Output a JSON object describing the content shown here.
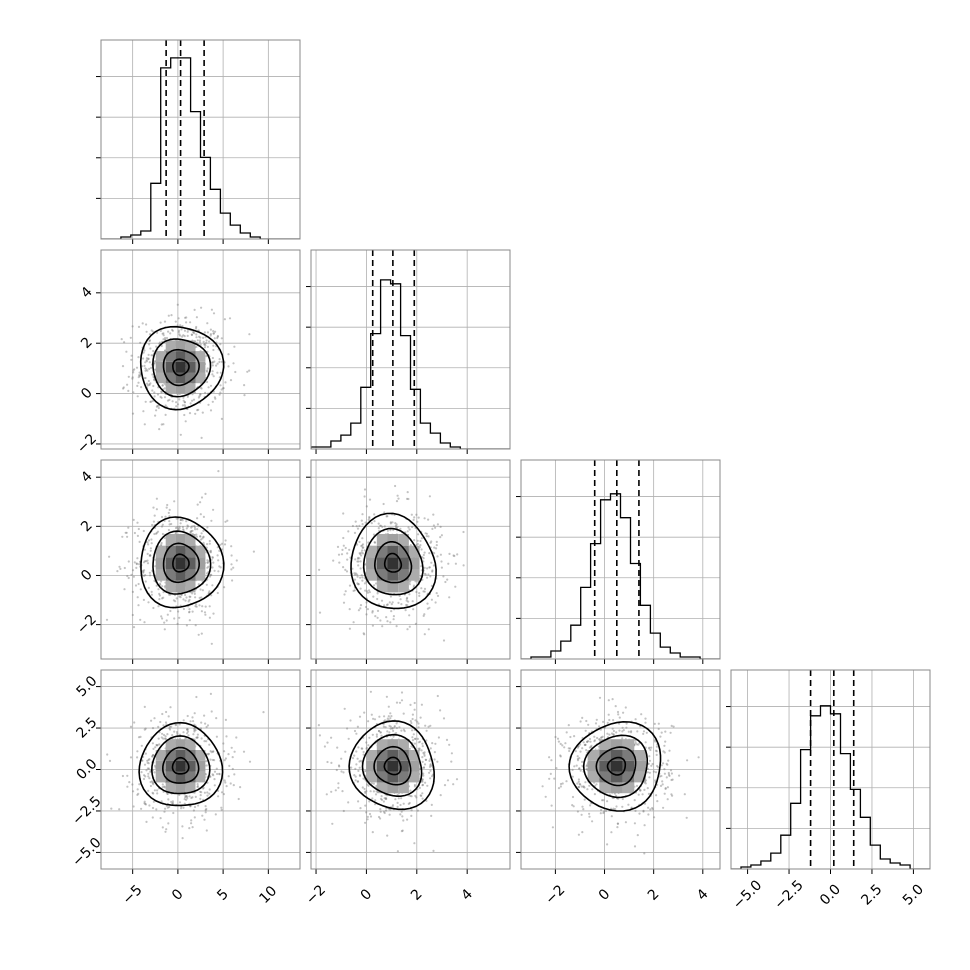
{
  "chart_data": {
    "type": "corner",
    "parameters": 4,
    "grid": true,
    "colors": {
      "line": "#000000",
      "scatter": "#7a7a7a",
      "frame": "#888888",
      "grid": "#b0b0b0"
    },
    "params": [
      {
        "range": [
          -8.5,
          13.5
        ],
        "ticks": [
          -5,
          0,
          5,
          10
        ],
        "tick_labels": [
          "−5",
          "0",
          "5",
          "10"
        ],
        "quantiles": [
          -1.3,
          0.3,
          2.9
        ],
        "mean": 0.3,
        "sd": 2.2,
        "hist_max": 1.0,
        "hist": [
          0,
          0,
          0.01,
          0.02,
          0.04,
          0.28,
          0.86,
          0.91,
          0.91,
          0.64,
          0.41,
          0.25,
          0.13,
          0.07,
          0.03,
          0.01,
          0,
          0,
          0,
          0
        ]
      },
      {
        "range": [
          -2.2,
          5.7
        ],
        "ticks": [
          -2,
          0,
          2,
          4
        ],
        "tick_labels": [
          "−2",
          "0",
          "2",
          "4"
        ],
        "quantiles": [
          0.25,
          1.05,
          1.9
        ],
        "mean": 1.05,
        "sd": 0.85,
        "hist_max": 1.0,
        "hist": [
          0.01,
          0.01,
          0.04,
          0.07,
          0.13,
          0.31,
          0.58,
          0.85,
          0.83,
          0.57,
          0.3,
          0.13,
          0.08,
          0.03,
          0.01,
          0,
          0,
          0,
          0,
          0
        ]
      },
      {
        "range": [
          -3.4,
          4.7
        ],
        "ticks": [
          -2,
          0,
          2,
          4
        ],
        "tick_labels": [
          "−2",
          "0",
          "2",
          "4"
        ],
        "quantiles": [
          -0.4,
          0.5,
          1.4
        ],
        "mean": 0.5,
        "sd": 0.95,
        "hist_max": 1.0,
        "hist": [
          0,
          0.01,
          0.01,
          0.04,
          0.09,
          0.17,
          0.36,
          0.58,
          0.8,
          0.83,
          0.71,
          0.48,
          0.27,
          0.13,
          0.06,
          0.03,
          0.01,
          0.01,
          0,
          0
        ]
      },
      {
        "range": [
          -6.0,
          6.0
        ],
        "ticks": [
          -5,
          -2.5,
          0,
          2.5,
          5
        ],
        "tick_labels": [
          "−5.0",
          "−2.5",
          "0.0",
          "2.5",
          "5.0"
        ],
        "quantiles": [
          -1.2,
          0.2,
          1.4
        ],
        "mean": 0.2,
        "sd": 1.3,
        "hist_max": 1.0,
        "hist": [
          0,
          0.01,
          0.02,
          0.04,
          0.08,
          0.17,
          0.33,
          0.6,
          0.77,
          0.82,
          0.78,
          0.58,
          0.4,
          0.26,
          0.12,
          0.05,
          0.03,
          0.02,
          0,
          0
        ]
      }
    ],
    "contour_levels": [
      0.39,
      0.86,
      1.39,
      2.0
    ]
  }
}
